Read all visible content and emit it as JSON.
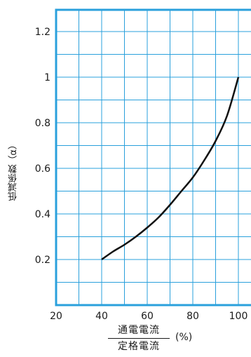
{
  "chart_data": {
    "type": "line",
    "xlabel": {
      "numerator": "通電電流",
      "denominator": "定格電流",
      "unit": "(%)"
    },
    "ylabel": "低減係数（α）",
    "xlim": [
      20,
      105
    ],
    "ylim": [
      0,
      1.3
    ],
    "x_ticks": [
      "20",
      "40",
      "60",
      "80",
      "100"
    ],
    "y_ticks": [
      "0.2",
      "0.4",
      "0.6",
      "0.8",
      "1",
      "1.2"
    ],
    "grid": true,
    "colors": {
      "grid": "#2aa0dc",
      "frame": "#2aa0dc",
      "line": "#111111"
    },
    "series": [
      {
        "x": [
          40,
          45,
          50,
          55,
          60,
          65,
          70,
          75,
          80,
          85,
          90,
          95,
          100
        ],
        "values": [
          0.2,
          0.235,
          0.265,
          0.3,
          0.34,
          0.385,
          0.44,
          0.5,
          0.56,
          0.635,
          0.72,
          0.83,
          1.0
        ]
      }
    ]
  }
}
